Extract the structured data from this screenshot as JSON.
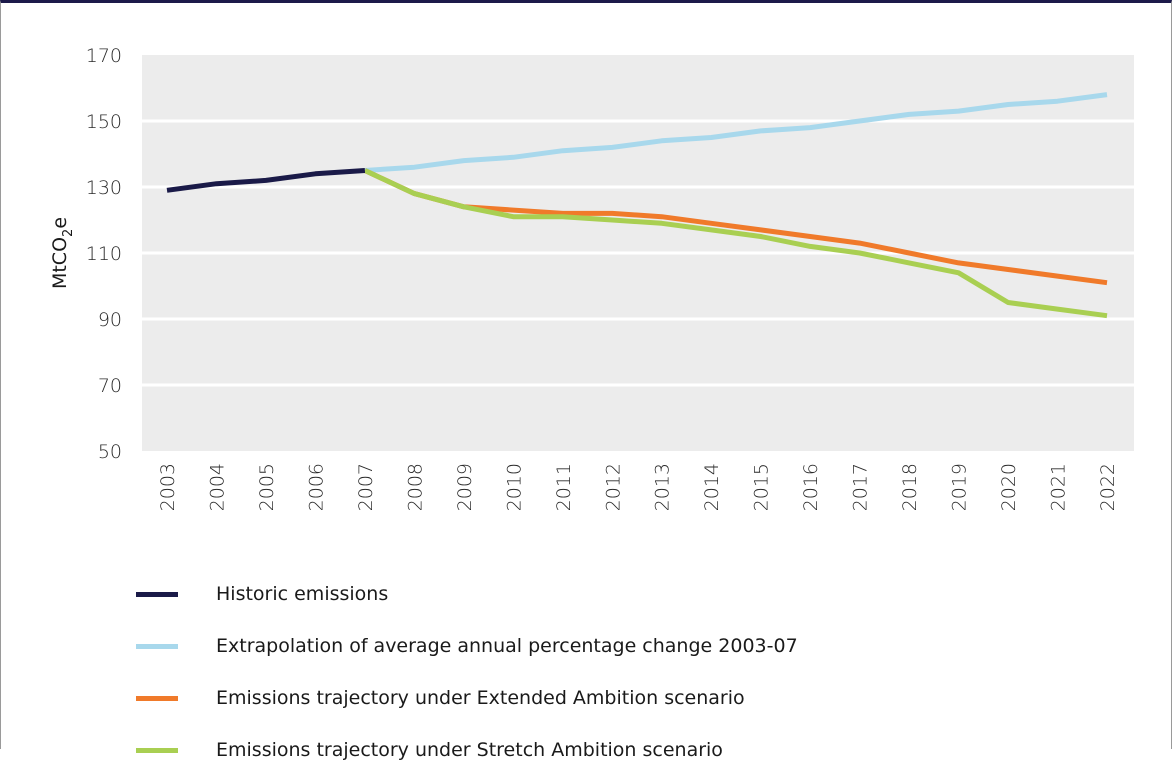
{
  "chart_data": {
    "type": "line",
    "ylabel": "MtCO₂e",
    "ylim": [
      50,
      170
    ],
    "yticks": [
      "170",
      "150",
      "130",
      "110",
      "90",
      "70",
      "50"
    ],
    "categories": [
      "2003",
      "2004",
      "2005",
      "2006",
      "2007",
      "2008",
      "2009",
      "2010",
      "2011",
      "2012",
      "2013",
      "2014",
      "2015",
      "2016",
      "2017",
      "2018",
      "2019",
      "2020",
      "2021",
      "2022"
    ],
    "grid": "horizontal",
    "legend_position": "bottom",
    "series": [
      {
        "name": "Historic emissions",
        "color": "#1a1a48",
        "x": [
          "2003",
          "2004",
          "2005",
          "2006",
          "2007"
        ],
        "values": [
          129,
          131,
          132,
          134,
          135
        ]
      },
      {
        "name": "Extrapolation of average annual percentage change 2003-07",
        "color": "#a8d8ec",
        "x": [
          "2007",
          "2008",
          "2009",
          "2010",
          "2011",
          "2012",
          "2013",
          "2014",
          "2015",
          "2016",
          "2017",
          "2018",
          "2019",
          "2020",
          "2021",
          "2022"
        ],
        "values": [
          135,
          136,
          138,
          139,
          141,
          142,
          144,
          145,
          147,
          148,
          150,
          152,
          153,
          155,
          156,
          158
        ]
      },
      {
        "name": "Emissions trajectory under Extended Ambition scenario",
        "color": "#f07a2a",
        "x": [
          "2007",
          "2008",
          "2009",
          "2010",
          "2011",
          "2012",
          "2013",
          "2014",
          "2015",
          "2016",
          "2017",
          "2018",
          "2019",
          "2020",
          "2021",
          "2022"
        ],
        "values": [
          135,
          128,
          124,
          123,
          122,
          122,
          121,
          119,
          117,
          115,
          113,
          110,
          107,
          105,
          103,
          101
        ]
      },
      {
        "name": "Emissions trajectory under Stretch Ambition scenario",
        "color": "#a9cf52",
        "x": [
          "2007",
          "2008",
          "2009",
          "2010",
          "2011",
          "2012",
          "2013",
          "2014",
          "2015",
          "2016",
          "2017",
          "2018",
          "2019",
          "2020",
          "2021",
          "2022"
        ],
        "values": [
          135,
          128,
          124,
          121,
          121,
          120,
          119,
          117,
          115,
          112,
          110,
          107,
          104,
          95,
          93,
          91
        ]
      }
    ]
  }
}
